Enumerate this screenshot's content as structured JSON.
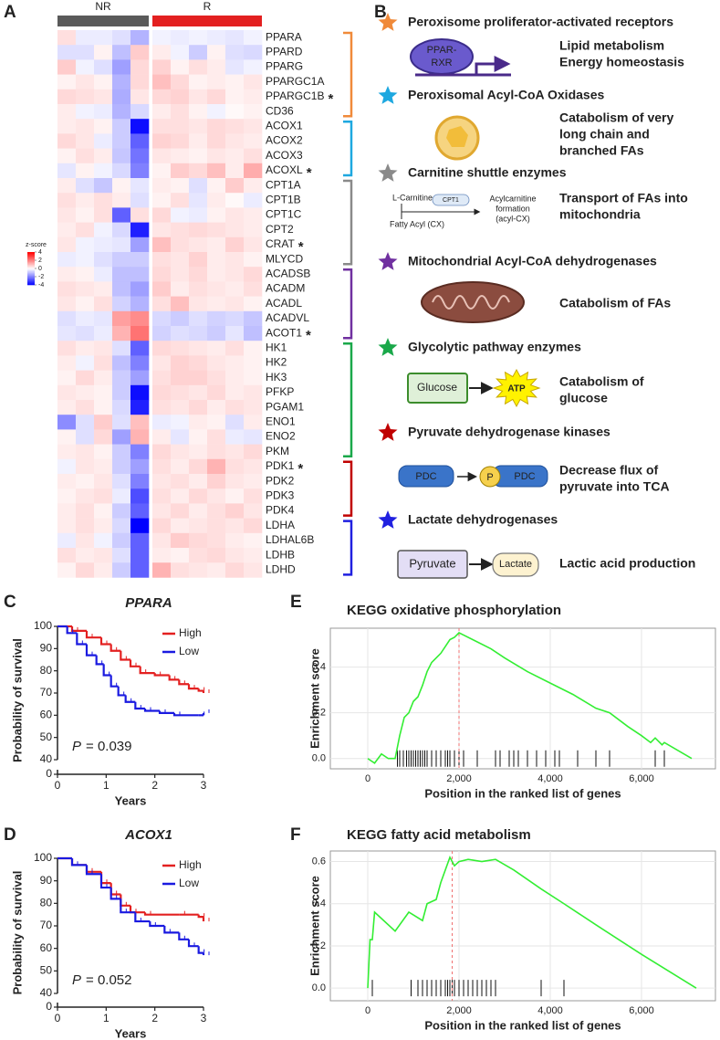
{
  "panel_labels": [
    "A",
    "B",
    "C",
    "D",
    "E",
    "F"
  ],
  "chart_data": [
    {
      "type": "heatmap",
      "column_groups": [
        {
          "name": "NR",
          "color": "#5a5a5a",
          "count": 5
        },
        {
          "name": "R",
          "color": "#e32020",
          "count": 6
        }
      ],
      "rows": [
        "PPARA",
        "PPARD",
        "PPARG",
        "PPARGC1A",
        "PPARGC1B",
        "CD36",
        "ACOX1",
        "ACOX2",
        "ACOX3",
        "ACOXL",
        "CPT1A",
        "CPT1B",
        "CPT1C",
        "CPT2",
        "CRAT",
        "MLYCD",
        "ACADSB",
        "ACADM",
        "ACADL",
        "ACADVL",
        "ACOT1",
        "HK1",
        "HK2",
        "HK3",
        "PFKP",
        "PGAM1",
        "ENO1",
        "ENO2",
        "PKM",
        "PDK1",
        "PDK2",
        "PDK3",
        "PDK4",
        "LDHA",
        "LDHAL6B",
        "LDHB",
        "LDHD"
      ],
      "values": [
        [
          0.5,
          -0.3,
          -0.3,
          -0.5,
          -1.2,
          -0.2,
          -0.3,
          -0.2,
          -0.3,
          -0.4,
          -0.2
        ],
        [
          -0.5,
          -0.5,
          0.2,
          -1,
          0.8,
          0.3,
          -0.2,
          -0.8,
          0.2,
          -0.5,
          -0.6
        ],
        [
          0.8,
          -0.2,
          -0.5,
          -1.5,
          0.6,
          0.7,
          0.2,
          0.5,
          0.3,
          -0.4,
          -0.2
        ],
        [
          0.2,
          0.4,
          0.2,
          -1.2,
          0.6,
          1,
          0.6,
          0.2,
          0.3,
          0.2,
          0.4
        ],
        [
          0.6,
          0.5,
          0.4,
          -1.3,
          0.4,
          0.6,
          0.7,
          0.4,
          0.6,
          0.2,
          0.3
        ],
        [
          0.3,
          -0.2,
          -0.3,
          -1.2,
          -0.6,
          0.3,
          0.5,
          0.2,
          -0.2,
          0.1,
          0.2
        ],
        [
          0.3,
          0.4,
          0.2,
          -0.8,
          -3.8,
          0.5,
          0.5,
          0.4,
          0.6,
          0.5,
          0.4
        ],
        [
          0.6,
          0.4,
          -0.3,
          -0.8,
          -2.5,
          0.7,
          0.6,
          0.3,
          0.6,
          0.4,
          0.3
        ],
        [
          0.2,
          0.5,
          0.3,
          -0.9,
          -2.2,
          0.4,
          0.3,
          0.2,
          0.4,
          0.3,
          0.5
        ],
        [
          -0.4,
          0.2,
          -0.2,
          -0.6,
          -2,
          0.2,
          0.8,
          0.6,
          1,
          0.3,
          1.3
        ],
        [
          0.3,
          -0.5,
          -0.9,
          0.2,
          -0.4,
          0.3,
          0.2,
          -0.5,
          0.2,
          0.8,
          0.3
        ],
        [
          0.5,
          0.3,
          0.5,
          0.3,
          -0.5,
          0.2,
          0.5,
          -0.4,
          0.3,
          0.1,
          -0.3
        ],
        [
          0.4,
          0.2,
          0.5,
          -2.5,
          0.5,
          0.6,
          -0.2,
          -0.3,
          0.2,
          0.4,
          0.3
        ],
        [
          0.3,
          0.5,
          -0.2,
          -0.6,
          -3.5,
          0.4,
          0.5,
          0.6,
          0.5,
          0.4,
          0.3
        ],
        [
          0.4,
          -0.2,
          -0.3,
          -0.4,
          -1.5,
          1,
          0.5,
          0.4,
          0.3,
          0.7,
          0.4
        ],
        [
          -0.3,
          -0.2,
          -0.5,
          -0.8,
          -0.8,
          0.5,
          0.4,
          0.7,
          0.3,
          0.4,
          0.2
        ],
        [
          0.3,
          0.2,
          -0.3,
          -1,
          -1,
          0.6,
          0.4,
          0.6,
          0.3,
          0.4,
          0.6
        ],
        [
          0.5,
          0.4,
          0.3,
          -1,
          -1.5,
          0.8,
          0.3,
          0.5,
          0.4,
          0.3,
          0.5
        ],
        [
          0.4,
          0.2,
          0.5,
          -0.7,
          -1.2,
          0.5,
          1,
          0.4,
          0.3,
          0.4,
          0.2
        ],
        [
          -0.5,
          -0.3,
          -0.4,
          1.5,
          1.8,
          -0.6,
          -0.8,
          -0.5,
          -0.7,
          -0.6,
          -0.9
        ],
        [
          -0.4,
          -0.5,
          -0.3,
          1.2,
          2.2,
          -0.7,
          -0.5,
          -0.6,
          -0.8,
          -0.4,
          -1
        ],
        [
          0.5,
          0.3,
          0.4,
          -0.5,
          -2.5,
          0.6,
          0.5,
          0.4,
          0.3,
          0.5,
          0.2
        ],
        [
          0.3,
          -0.2,
          0.5,
          -1,
          -2,
          0.4,
          0.7,
          0.6,
          0.4,
          0.3,
          0.2
        ],
        [
          0.2,
          0.6,
          0.3,
          -0.8,
          -1.5,
          0.5,
          0.7,
          0.7,
          0.5,
          0.3,
          0.2
        ],
        [
          0.4,
          0.3,
          0.2,
          -0.8,
          -3.8,
          0.6,
          0.5,
          0.4,
          0.6,
          0.3,
          0.4
        ],
        [
          0.3,
          0.5,
          0.2,
          -0.6,
          -3.5,
          0.5,
          0.4,
          0.6,
          0.3,
          0.5,
          0.4
        ],
        [
          -1.8,
          -0.5,
          0.8,
          -0.5,
          1,
          -0.3,
          -0.2,
          0.3,
          0.2,
          -0.5,
          0.3
        ],
        [
          0.2,
          -0.5,
          0.6,
          -1.5,
          1.2,
          0.3,
          -0.4,
          0.2,
          0.5,
          -0.3,
          -0.4
        ],
        [
          0.3,
          0.4,
          0.2,
          -0.8,
          -2,
          0.6,
          0.4,
          0.3,
          0.5,
          0.4,
          0.6
        ],
        [
          -0.2,
          0.4,
          0.3,
          -0.8,
          -1.5,
          0.5,
          0.3,
          0.6,
          1.2,
          0.5,
          0.4
        ],
        [
          0.3,
          0.2,
          0.4,
          -0.5,
          -2,
          0.4,
          0.5,
          0.3,
          0.7,
          0.4,
          0.3
        ],
        [
          0.2,
          0.4,
          0.5,
          -0.3,
          -2.8,
          0.5,
          0.3,
          0.6,
          0.4,
          0.2,
          0.5
        ],
        [
          0.3,
          0.5,
          0.2,
          -0.8,
          -2.5,
          0.4,
          0.6,
          0.3,
          0.5,
          0.7,
          0.4
        ],
        [
          0.3,
          0.5,
          0.3,
          -0.6,
          -4,
          0.6,
          0.3,
          0.4,
          0.5,
          0.4,
          0.6
        ],
        [
          -0.3,
          0.4,
          -0.2,
          -0.8,
          -2.5,
          0.4,
          0.8,
          0.6,
          0.5,
          0.3,
          0.2
        ],
        [
          0.5,
          0.3,
          0.4,
          -0.5,
          -2.5,
          0.3,
          0.2,
          0.5,
          0.6,
          0.4,
          0.3
        ],
        [
          0.2,
          0.6,
          0.3,
          -0.8,
          -2.5,
          1.2,
          0.5,
          0.4,
          0.3,
          0.6,
          0.4
        ]
      ],
      "annotations": [
        {
          "row": 4,
          "text": "*",
          "color": "#e32020"
        },
        {
          "row": 9,
          "text": "*",
          "color": "#e32020"
        },
        {
          "row": 14,
          "text": "*",
          "color": "#e32020"
        },
        {
          "row": 20,
          "text": "*",
          "color": "#2a2ae0"
        },
        {
          "row": 29,
          "text": "*",
          "color": "#e32020"
        }
      ],
      "row_group_sizes": [
        6,
        4,
        6,
        5,
        8,
        4,
        4
      ],
      "colorbar": {
        "title": "z-score",
        "lim": [
          -4,
          4
        ],
        "ticks": [
          4,
          2,
          0,
          -2,
          -4
        ],
        "colors": [
          "#0000ff",
          "#ffffff",
          "#ff0000"
        ]
      }
    },
    {
      "type": "survival",
      "title": "PPARA",
      "xlabel": "Years",
      "ylabel": "Probability of survival",
      "xlim": [
        0,
        3
      ],
      "xticks": [
        0,
        1,
        2,
        3
      ],
      "ylim": [
        40,
        100
      ],
      "yticks": [
        40,
        50,
        60,
        70,
        80,
        90,
        100
      ],
      "lower_ticks": [
        0
      ],
      "annotation": {
        "symbol": "P",
        "text": "= 0.039"
      },
      "series": [
        {
          "name": "High",
          "color": "#e32020",
          "x": [
            0,
            0.3,
            0.6,
            0.9,
            1.1,
            1.3,
            1.5,
            1.7,
            2.0,
            2.3,
            2.5,
            2.7,
            2.9,
            3.0
          ],
          "values": [
            100,
            98,
            95,
            92,
            89,
            85,
            82,
            79,
            78,
            76,
            74,
            72,
            71,
            70
          ]
        },
        {
          "name": "Low",
          "color": "#1a1ae0",
          "x": [
            0,
            0.2,
            0.4,
            0.6,
            0.8,
            0.95,
            1.1,
            1.25,
            1.4,
            1.6,
            1.8,
            2.1,
            2.4,
            2.9,
            3.0
          ],
          "values": [
            100,
            97,
            92,
            87,
            83,
            78,
            73,
            69,
            66,
            63,
            62,
            61,
            60,
            60,
            61
          ]
        }
      ]
    },
    {
      "type": "survival",
      "title": "ACOX1",
      "xlabel": "Years",
      "ylabel": "Probability of survival",
      "xlim": [
        0,
        3
      ],
      "xticks": [
        0,
        1,
        2,
        3
      ],
      "ylim": [
        40,
        100
      ],
      "yticks": [
        40,
        50,
        60,
        70,
        80,
        90,
        100
      ],
      "lower_ticks": [
        0
      ],
      "annotation": {
        "symbol": "P",
        "text": "= 0.052"
      },
      "series": [
        {
          "name": "High",
          "color": "#e32020",
          "x": [
            0,
            0.3,
            0.6,
            0.9,
            1.1,
            1.3,
            1.5,
            1.8,
            2.5,
            2.9,
            3.0
          ],
          "values": [
            100,
            97,
            94,
            89,
            84,
            79,
            76,
            75,
            75,
            74,
            72
          ]
        },
        {
          "name": "Low",
          "color": "#1a1ae0",
          "x": [
            0,
            0.3,
            0.6,
            0.9,
            1.1,
            1.3,
            1.6,
            1.9,
            2.2,
            2.5,
            2.7,
            2.9,
            3.0
          ],
          "values": [
            100,
            97,
            93,
            87,
            82,
            76,
            72,
            70,
            67,
            64,
            61,
            58,
            57
          ]
        }
      ]
    },
    {
      "type": "enrichment",
      "title": "KEGG oxidative phosphorylation",
      "xlabel": "Position in the ranked list of genes",
      "ylabel": "Enrichment score",
      "xlim": [
        -820,
        7620
      ],
      "ylim": [
        -0.045,
        0.57
      ],
      "xticks": [
        0,
        {
          "value": 2000,
          "label": "2,000"
        },
        {
          "value": 4000,
          "label": "4,000"
        },
        {
          "value": 6000,
          "label": "6,000"
        }
      ],
      "yticks": [
        {
          "value": 0,
          "label": "0.0"
        },
        0.2,
        0.4
      ],
      "grid": true,
      "series": [
        {
          "color": "#33ee33",
          "x": [
            0,
            150,
            300,
            450,
            600,
            700,
            800,
            900,
            1000,
            1100,
            1200,
            1300,
            1400,
            1500,
            1600,
            1700,
            1800,
            1900,
            2000,
            2300,
            2700,
            3000,
            3500,
            4000,
            4500,
            5000,
            5300,
            5700,
            6000,
            6200,
            6300,
            6450,
            6500,
            7100
          ],
          "values": [
            0,
            -0.02,
            0.02,
            0,
            0,
            0.1,
            0.18,
            0.2,
            0.25,
            0.27,
            0.32,
            0.38,
            0.42,
            0.44,
            0.46,
            0.49,
            0.52,
            0.53,
            0.55,
            0.52,
            0.48,
            0.44,
            0.38,
            0.33,
            0.28,
            0.22,
            0.2,
            0.14,
            0.1,
            0.07,
            0.09,
            0.06,
            0.07,
            0
          ]
        }
      ],
      "hits": [
        650,
        700,
        780,
        850,
        900,
        950,
        1000,
        1050,
        1100,
        1150,
        1200,
        1250,
        1300,
        1400,
        1500,
        1600,
        1700,
        1750,
        1800,
        1900,
        2000,
        2100,
        2400,
        2800,
        2900,
        3100,
        3200,
        3300,
        3500,
        3700,
        3900,
        4100,
        4200,
        4600,
        5000,
        5300,
        6300,
        6500
      ],
      "peak_x": 2000,
      "peak_color": "#f07070"
    },
    {
      "type": "enrichment",
      "title": "KEGG fatty acid metabolism",
      "xlabel": "Position in the ranked list of genes",
      "ylabel": "Enrichment score",
      "xlim": [
        -820,
        7620
      ],
      "ylim": [
        -0.06,
        0.65
      ],
      "xticks": [
        0,
        {
          "value": 2000,
          "label": "2,000"
        },
        {
          "value": 4000,
          "label": "4,000"
        },
        {
          "value": 6000,
          "label": "6,000"
        }
      ],
      "yticks": [
        {
          "value": 0,
          "label": "0.0"
        },
        0.2,
        0.4,
        0.6
      ],
      "grid": true,
      "series": [
        {
          "color": "#33ee33",
          "x": [
            0,
            50,
            100,
            150,
            600,
            900,
            1200,
            1300,
            1500,
            1600,
            1800,
            1900,
            2000,
            2200,
            2500,
            2800,
            3200,
            3800,
            4300,
            5000,
            6000,
            7200
          ],
          "values": [
            0,
            0.23,
            0.23,
            0.36,
            0.27,
            0.36,
            0.32,
            0.4,
            0.42,
            0.5,
            0.62,
            0.58,
            0.6,
            0.61,
            0.6,
            0.61,
            0.56,
            0.47,
            0.4,
            0.3,
            0.16,
            0
          ]
        }
      ],
      "hits": [
        100,
        950,
        1100,
        1200,
        1300,
        1400,
        1500,
        1600,
        1700,
        1750,
        1800,
        1850,
        1900,
        2000,
        2100,
        2200,
        2300,
        2400,
        2500,
        2600,
        2700,
        2800,
        3800,
        4300
      ],
      "peak_x": 1850,
      "peak_color": "#f07070"
    }
  ],
  "diagram": {
    "sections": [
      {
        "title": "Peroxisome proliferator-activated receptors",
        "color": "#f08a3a",
        "description": [
          "Lipid metabolism",
          "Energy homeostasis"
        ],
        "icon_texts": [
          "PPAR-",
          "RXR"
        ]
      },
      {
        "title": "Peroxisomal Acyl-CoA Oxidases",
        "color": "#1ea8e0",
        "description": [
          "Catabolism of very",
          "long chain and",
          "branched FAs"
        ],
        "icon_texts": []
      },
      {
        "title": "Carnitine shuttle enzymes",
        "color": "#8a8a8a",
        "description": [
          "Transport of FAs into",
          "mitochondria"
        ],
        "icon_texts": [
          "L-Carnitine",
          "CPT1",
          "Acylcarnitine",
          "formation",
          "(acyl-CX)",
          "Fatty Acyl (CX)"
        ]
      },
      {
        "title": "Mitochondrial Acyl-CoA dehydrogenases",
        "color": "#7030a0",
        "description": [
          "Catabolism of FAs"
        ],
        "icon_texts": []
      },
      {
        "title": "Glycolytic pathway enzymes",
        "color": "#1aa84a",
        "description": [
          "Catabolism of",
          "glucose"
        ],
        "icon_texts": [
          "Glucose",
          "ATP"
        ]
      },
      {
        "title": "Pyruvate dehydrogenase kinases",
        "color": "#c00000",
        "description": [
          "Decrease flux of",
          "pyruvate into TCA"
        ],
        "icon_texts": [
          "PDC",
          "P",
          "PDC"
        ]
      },
      {
        "title": "Lactate dehydrogenases",
        "color": "#2020e0",
        "description": [
          "Lactic acid production"
        ],
        "icon_texts": [
          "Pyruvate",
          "Lactate"
        ]
      }
    ]
  }
}
